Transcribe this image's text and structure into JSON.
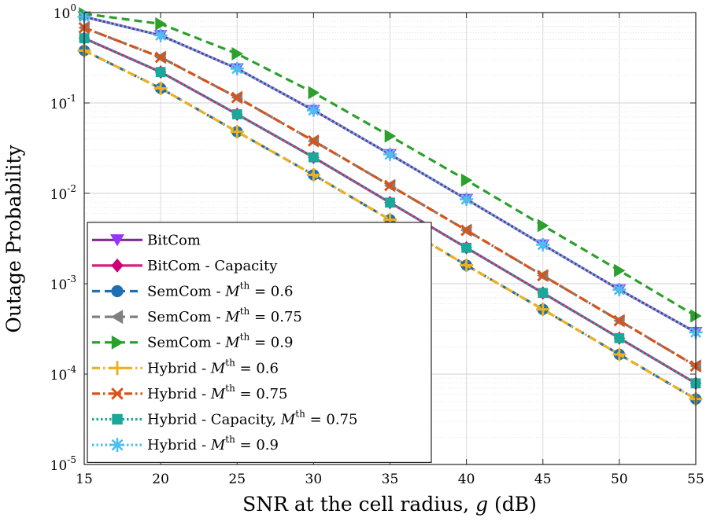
{
  "chart_data": {
    "type": "line",
    "yscale": "log",
    "xlabel_text": "SNR at the cell radius, ",
    "xlabel_var": "g",
    "xlabel_unit": " (dB)",
    "ylabel": "Outage Probability",
    "xlim": [
      15,
      55
    ],
    "ylim": [
      1e-05,
      1
    ],
    "x_ticks": [
      "15",
      "20",
      "25",
      "30",
      "35",
      "40",
      "45",
      "50",
      "55"
    ],
    "y_ticks": [
      {
        "base": "10",
        "exp": "0"
      },
      {
        "base": "10",
        "exp": "-1"
      },
      {
        "base": "10",
        "exp": "-2"
      },
      {
        "base": "10",
        "exp": "-3"
      },
      {
        "base": "10",
        "exp": "-4"
      },
      {
        "base": "10",
        "exp": "-5"
      }
    ],
    "grid": true,
    "legend_position": "bottom-left",
    "x": [
      15,
      20,
      25,
      30,
      35,
      40,
      45,
      50,
      55
    ],
    "series": [
      {
        "name": "BitCom",
        "label_main": "BitCom",
        "color": "#7E2F8E",
        "marker_color": "#9933FF",
        "dash": "solid",
        "marker": "triangle-down",
        "values": [
          0.9,
          0.56,
          0.24,
          0.083,
          0.027,
          0.0086,
          0.0027,
          0.00086,
          0.00029
        ]
      },
      {
        "name": "BitCom - Capacity",
        "label_main": "BitCom - Capacity",
        "color": "#D4207A",
        "marker_color": "#CC0077",
        "dash": "solid",
        "marker": "diamond",
        "values": [
          0.52,
          0.22,
          0.075,
          0.025,
          0.0079,
          0.0025,
          0.00079,
          0.00025,
          7.9e-05
        ]
      },
      {
        "name": "SemCom - M^th = 0.6",
        "label_main": "SemCom - ",
        "label_tail": " = 0.6",
        "color": "#1F6FB4",
        "marker_color": "#1F6FB4",
        "dash": "dash",
        "marker": "circle",
        "values": [
          0.38,
          0.145,
          0.048,
          0.016,
          0.0051,
          0.0016,
          0.00052,
          0.000165,
          5.3e-05
        ]
      },
      {
        "name": "SemCom - M^th = 0.75",
        "label_main": "SemCom - ",
        "label_tail": " = 0.75",
        "color": "#808080",
        "marker_color": "#808080",
        "dash": "dash",
        "marker": "triangle-left",
        "values": [
          0.68,
          0.32,
          0.115,
          0.038,
          0.0122,
          0.0039,
          0.00123,
          0.00039,
          0.000123
        ]
      },
      {
        "name": "SemCom - M^th = 0.9",
        "label_main": "SemCom - ",
        "label_tail": " = 0.9",
        "color": "#2CA02C",
        "marker_color": "#2CA02C",
        "dash": "dash",
        "marker": "triangle-right",
        "values": [
          0.97,
          0.75,
          0.35,
          0.13,
          0.043,
          0.014,
          0.0044,
          0.0014,
          0.00044
        ]
      },
      {
        "name": "Hybrid - M^th = 0.6",
        "label_main": "Hybrid - ",
        "label_tail": " = 0.6",
        "color": "#EDB120",
        "marker_color": "#EDB120",
        "dash": "dashdot",
        "marker": "plus",
        "values": [
          0.38,
          0.145,
          0.048,
          0.016,
          0.0051,
          0.0016,
          0.00052,
          0.000165,
          5.3e-05
        ]
      },
      {
        "name": "Hybrid - M^th = 0.75",
        "label_main": "Hybrid - ",
        "label_tail": " = 0.75",
        "color": "#D95319",
        "marker_color": "#D95319",
        "dash": "dashdot",
        "marker": "x",
        "values": [
          0.68,
          0.32,
          0.115,
          0.038,
          0.0122,
          0.0039,
          0.00123,
          0.00039,
          0.000123
        ]
      },
      {
        "name": "Hybrid - Capacity, M^th = 0.75",
        "label_main": "Hybrid - Capacity, ",
        "label_tail": " = 0.75",
        "color": "#1AA89A",
        "marker_color": "#1AA89A",
        "dash": "dot",
        "marker": "square",
        "values": [
          0.52,
          0.22,
          0.075,
          0.025,
          0.0079,
          0.0025,
          0.00079,
          0.00025,
          7.9e-05
        ]
      },
      {
        "name": "Hybrid - M^th = 0.9",
        "label_main": "Hybrid - ",
        "label_tail": " = 0.9",
        "color": "#4DBEEE",
        "marker_color": "#4DBEEE",
        "dash": "dot",
        "marker": "star",
        "values": [
          0.9,
          0.56,
          0.24,
          0.083,
          0.027,
          0.0086,
          0.0027,
          0.00086,
          0.00029
        ]
      }
    ]
  },
  "legend_math": {
    "var": "M",
    "sup": "th"
  }
}
